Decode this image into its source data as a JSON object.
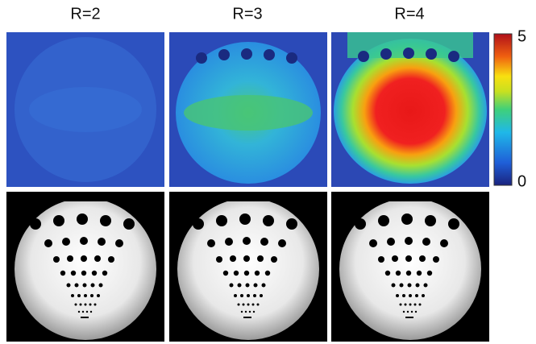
{
  "panels": [
    {
      "label": "R=2"
    },
    {
      "label": "R=3"
    },
    {
      "label": "R=4"
    }
  ],
  "colorbar": {
    "top_label": "5",
    "bottom_label": "0"
  }
}
